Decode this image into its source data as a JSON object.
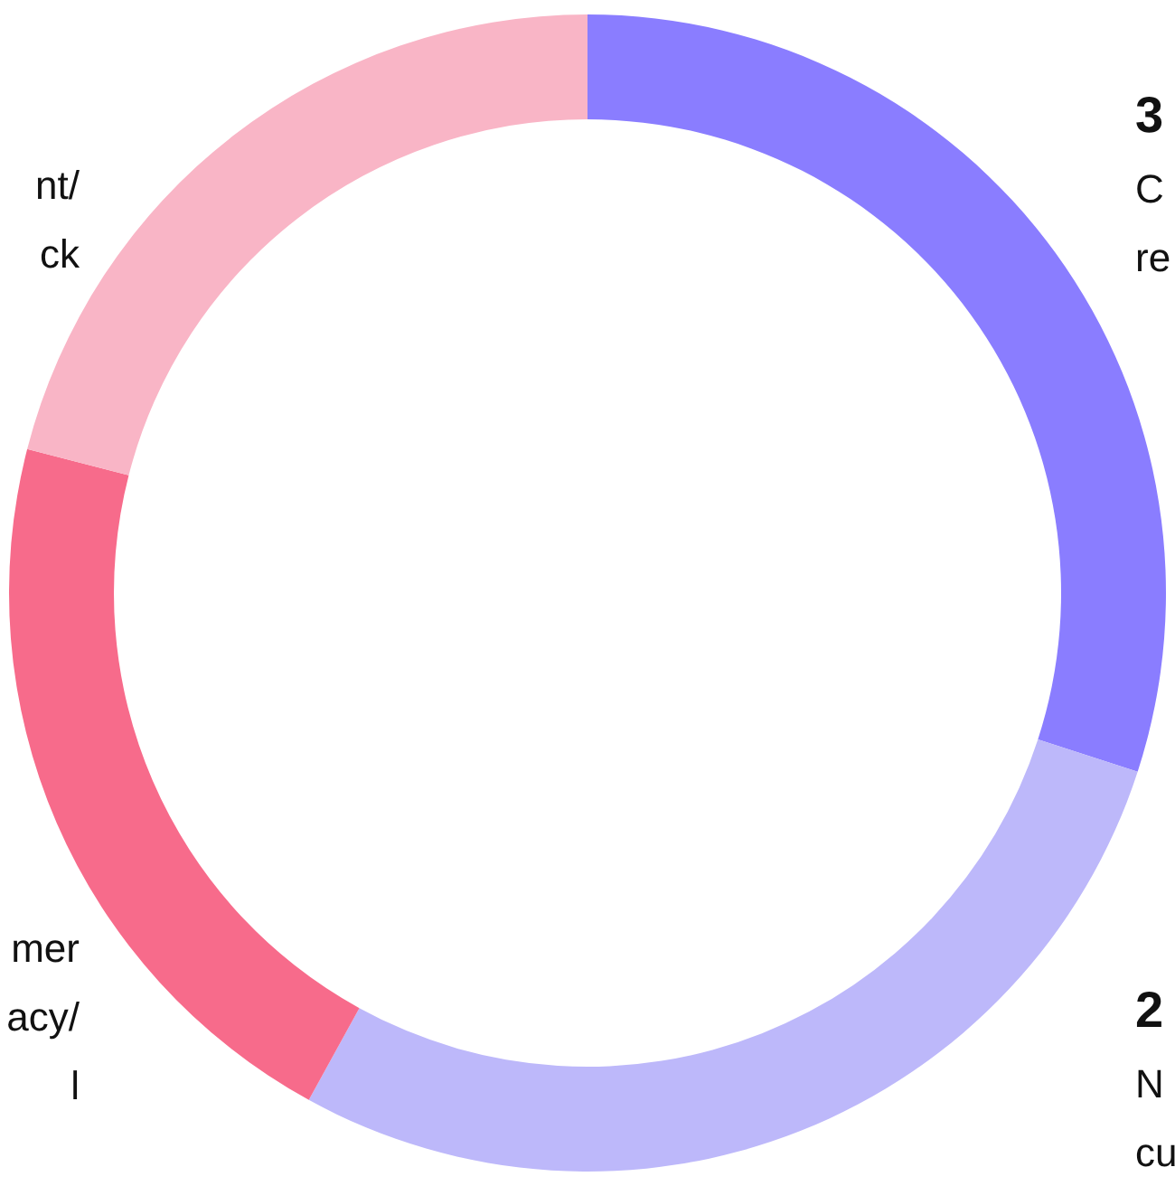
{
  "chart_data": {
    "type": "donut",
    "categories": [
      "C\nre",
      "N\ncu",
      "mer\nacy/\nl",
      "nt/\nck"
    ],
    "values": [
      30,
      28,
      21,
      21
    ],
    "colors": [
      "#8a7dff",
      "#bdb8fa",
      "#f76b8b",
      "#f9b5c6"
    ],
    "annotations": [
      "3",
      "2"
    ]
  }
}
